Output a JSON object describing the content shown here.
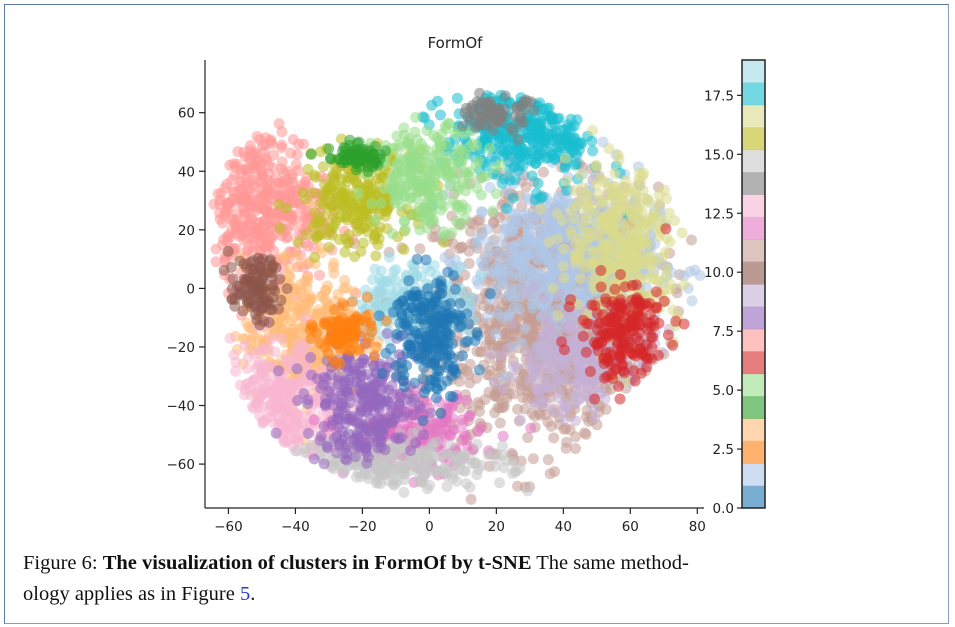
{
  "chart_data": {
    "type": "scatter",
    "title": "FormOf",
    "xlabel": "",
    "ylabel": "",
    "xlim": [
      -67,
      82
    ],
    "ylim": [
      -75,
      78
    ],
    "x_ticks": [
      -60,
      -40,
      -20,
      0,
      20,
      40,
      60,
      80
    ],
    "y_ticks": [
      -60,
      -40,
      -20,
      0,
      20,
      40,
      60
    ],
    "grid": false,
    "colormap": "tab20",
    "colorbar": {
      "range": [
        0,
        19
      ],
      "ticks": [
        "0.0",
        "2.5",
        "5.0",
        "7.5",
        "10.0",
        "12.5",
        "15.0",
        "17.5"
      ],
      "colors": [
        "#1f77b4",
        "#aec7e8",
        "#ff7f0e",
        "#ffbb78",
        "#2ca02c",
        "#98df8a",
        "#d62728",
        "#ff9896",
        "#9467bd",
        "#c5b0d5",
        "#8c564b",
        "#c49c94",
        "#e377c2",
        "#f7b6d2",
        "#7f7f7f",
        "#c7c7c7",
        "#bcbd22",
        "#dbdb8d",
        "#17becf",
        "#9edae5"
      ]
    },
    "clusters": [
      {
        "label": 0,
        "cx": 0,
        "cy": -15,
        "rx": 10,
        "ry": 20
      },
      {
        "label": 1,
        "cx": 40,
        "cy": 10,
        "rx": 25,
        "ry": 25
      },
      {
        "label": 2,
        "cx": -25,
        "cy": -15,
        "rx": 8,
        "ry": 8
      },
      {
        "label": 3,
        "cx": -38,
        "cy": -15,
        "rx": 16,
        "ry": 22
      },
      {
        "label": 4,
        "cx": -22,
        "cy": 45,
        "rx": 8,
        "ry": 4
      },
      {
        "label": 5,
        "cx": 0,
        "cy": 38,
        "rx": 15,
        "ry": 15
      },
      {
        "label": 6,
        "cx": 58,
        "cy": -15,
        "rx": 12,
        "ry": 15
      },
      {
        "label": 7,
        "cx": -50,
        "cy": 28,
        "rx": 18,
        "ry": 25
      },
      {
        "label": 8,
        "cx": -20,
        "cy": -40,
        "rx": 15,
        "ry": 18
      },
      {
        "label": 9,
        "cx": 45,
        "cy": -25,
        "rx": 20,
        "ry": 15
      },
      {
        "label": 10,
        "cx": -52,
        "cy": 0,
        "rx": 7,
        "ry": 10
      },
      {
        "label": 11,
        "cx": 35,
        "cy": -10,
        "rx": 30,
        "ry": 40
      },
      {
        "label": 12,
        "cx": -5,
        "cy": -50,
        "rx": 18,
        "ry": 12
      },
      {
        "label": 13,
        "cx": -45,
        "cy": -40,
        "rx": 18,
        "ry": 20
      },
      {
        "label": 14,
        "cx": 20,
        "cy": 60,
        "rx": 8,
        "ry": 6
      },
      {
        "label": 15,
        "cx": -10,
        "cy": -60,
        "rx": 30,
        "ry": 8
      },
      {
        "label": 16,
        "cx": -22,
        "cy": 30,
        "rx": 15,
        "ry": 15
      },
      {
        "label": 17,
        "cx": 58,
        "cy": 15,
        "rx": 15,
        "ry": 25
      },
      {
        "label": 18,
        "cx": 28,
        "cy": 52,
        "rx": 22,
        "ry": 16
      },
      {
        "label": 19,
        "cx": -5,
        "cy": -5,
        "rx": 15,
        "ry": 12
      }
    ]
  },
  "caption": {
    "prefix": "Figure 6: ",
    "bold": "The visualization of clusters in FormOf by t-SNE",
    "text_line1": " The same method-",
    "text_line2": "ology applies as in Figure ",
    "ref": "5",
    "suffix": "."
  }
}
